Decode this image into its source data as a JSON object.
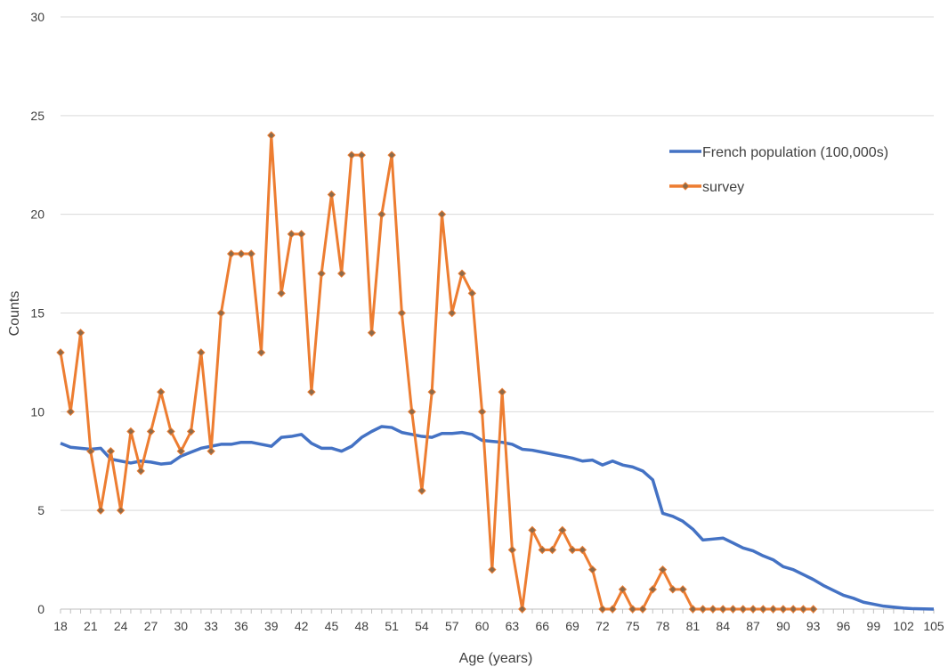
{
  "chart_data": {
    "type": "line",
    "xlabel": "Age (years)",
    "ylabel": "Counts",
    "xlim": [
      18,
      105
    ],
    "ylim": [
      0,
      30
    ],
    "x_ticks": [
      18,
      21,
      24,
      27,
      30,
      33,
      36,
      39,
      42,
      45,
      48,
      51,
      54,
      57,
      60,
      63,
      66,
      69,
      72,
      75,
      78,
      81,
      84,
      87,
      90,
      93,
      96,
      99,
      102,
      105
    ],
    "y_ticks": [
      0,
      5,
      10,
      15,
      20,
      25,
      30
    ],
    "grid": true,
    "legend_position": "top-right",
    "series": [
      {
        "name": "French population (100,000s)",
        "color": "#4472C4",
        "marker": "none",
        "x": [
          18,
          19,
          20,
          21,
          22,
          23,
          24,
          25,
          26,
          27,
          28,
          29,
          30,
          31,
          32,
          33,
          34,
          35,
          36,
          37,
          38,
          39,
          40,
          41,
          42,
          43,
          44,
          45,
          46,
          47,
          48,
          49,
          50,
          51,
          52,
          53,
          54,
          55,
          56,
          57,
          58,
          59,
          60,
          61,
          62,
          63,
          64,
          65,
          66,
          67,
          68,
          69,
          70,
          71,
          72,
          73,
          74,
          75,
          76,
          77,
          78,
          79,
          80,
          81,
          82,
          83,
          84,
          85,
          86,
          87,
          88,
          89,
          90,
          91,
          92,
          93,
          94,
          95,
          96,
          97,
          98,
          99,
          100,
          101,
          102,
          103,
          104,
          105
        ],
        "values": [
          8.4,
          8.2,
          8.15,
          8.1,
          8.15,
          7.6,
          7.5,
          7.4,
          7.5,
          7.45,
          7.35,
          7.4,
          7.75,
          7.95,
          8.15,
          8.25,
          8.35,
          8.35,
          8.45,
          8.45,
          8.35,
          8.25,
          8.7,
          8.75,
          8.85,
          8.4,
          8.15,
          8.15,
          8.0,
          8.25,
          8.7,
          9.0,
          9.25,
          9.2,
          8.95,
          8.85,
          8.75,
          8.7,
          8.9,
          8.9,
          8.95,
          8.85,
          8.55,
          8.5,
          8.45,
          8.35,
          8.1,
          8.05,
          7.95,
          7.85,
          7.75,
          7.65,
          7.5,
          7.55,
          7.3,
          7.5,
          7.3,
          7.2,
          7.0,
          6.55,
          4.85,
          4.7,
          4.45,
          4.05,
          3.5,
          3.55,
          3.6,
          3.35,
          3.1,
          2.95,
          2.7,
          2.5,
          2.15,
          2.0,
          1.75,
          1.5,
          1.2,
          0.95,
          0.7,
          0.55,
          0.35,
          0.25,
          0.15,
          0.1,
          0.05,
          0.02,
          0.01,
          0.0
        ]
      },
      {
        "name": "survey",
        "color": "#ED7D31",
        "marker": "diamond",
        "x": [
          18,
          19,
          20,
          21,
          22,
          23,
          24,
          25,
          26,
          27,
          28,
          29,
          30,
          31,
          32,
          33,
          34,
          35,
          36,
          37,
          38,
          39,
          40,
          41,
          42,
          43,
          44,
          45,
          46,
          47,
          48,
          49,
          50,
          51,
          52,
          53,
          54,
          55,
          56,
          57,
          58,
          59,
          60,
          61,
          62,
          63,
          64,
          65,
          66,
          67,
          68,
          69,
          70,
          71,
          72,
          73,
          74,
          75,
          76,
          77,
          78,
          79,
          80,
          81,
          82,
          83,
          84,
          85,
          86,
          87,
          88,
          89,
          90,
          91,
          92,
          93
        ],
        "values": [
          13,
          10,
          14,
          8,
          5,
          8,
          5,
          9,
          7,
          9,
          11,
          9,
          8,
          9,
          13,
          8,
          15,
          18,
          18,
          18,
          13,
          24,
          16,
          19,
          19,
          11,
          17,
          21,
          17,
          23,
          23,
          14,
          20,
          23,
          15,
          10,
          6,
          11,
          20,
          15,
          17,
          16,
          10,
          2,
          11,
          3,
          0,
          4,
          3,
          3,
          4,
          3,
          3,
          2,
          0,
          0,
          1,
          0,
          0,
          1,
          2,
          1,
          1,
          0,
          0,
          0,
          0,
          0,
          0,
          0,
          0,
          0,
          0,
          0,
          0,
          0
        ]
      }
    ]
  }
}
